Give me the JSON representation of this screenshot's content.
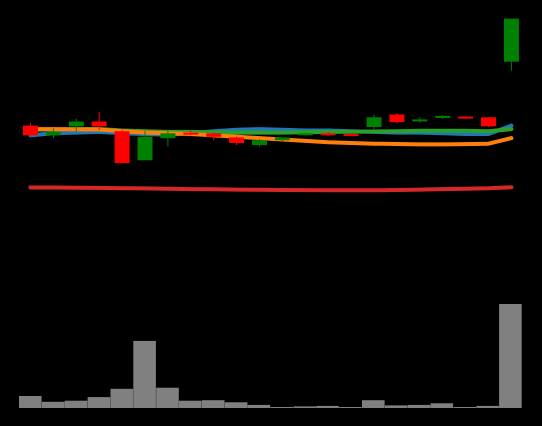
{
  "chart_data": {
    "type": "candlestick",
    "title": "",
    "xlabel": "",
    "ylabel": "",
    "background": "#000000",
    "up_color": "#008000",
    "down_color": "#ff0000",
    "volume_color": "#808080",
    "grid": false,
    "legend": "none",
    "price_range": [
      -37,
      140
    ],
    "volume_range": [
      0,
      100
    ],
    "candles": [
      {
        "open": 64.0,
        "high": 66.0,
        "low": 56.0,
        "close": 57.0
      },
      {
        "open": 57.0,
        "high": 62.0,
        "low": 55.0,
        "close": 59.5
      },
      {
        "open": 63.5,
        "high": 69.0,
        "low": 60.0,
        "close": 67.0
      },
      {
        "open": 67.0,
        "high": 74.0,
        "low": 61.0,
        "close": 63.5
      },
      {
        "open": 60.0,
        "high": 61.0,
        "low": 37.0,
        "close": 37.0
      },
      {
        "open": 39.0,
        "high": 60.0,
        "low": 39.0,
        "close": 56.0
      },
      {
        "open": 55.0,
        "high": 60.5,
        "low": 49.0,
        "close": 58.5
      },
      {
        "open": 59.0,
        "high": 60.5,
        "low": 57.0,
        "close": 58.0
      },
      {
        "open": 58.5,
        "high": 59.0,
        "low": 53.5,
        "close": 56.0
      },
      {
        "open": 55.5,
        "high": 56.0,
        "low": 50.0,
        "close": 51.5
      },
      {
        "open": 50.0,
        "high": 54.5,
        "low": 49.0,
        "close": 53.5
      },
      {
        "open": 53.5,
        "high": 55.0,
        "low": 52.0,
        "close": 55.5
      },
      {
        "open": 58.0,
        "high": 59.0,
        "low": 57.0,
        "close": 58.5
      },
      {
        "open": 58.5,
        "high": 59.5,
        "low": 56.5,
        "close": 57.5
      },
      {
        "open": 58.0,
        "high": 58.5,
        "low": 57.0,
        "close": 57.8
      },
      {
        "open": 63.0,
        "high": 72.0,
        "low": 61.5,
        "close": 70.0
      },
      {
        "open": 72.0,
        "high": 73.0,
        "low": 65.5,
        "close": 66.5
      },
      {
        "open": 67.5,
        "high": 70.0,
        "low": 66.0,
        "close": 68.5
      },
      {
        "open": 70.0,
        "high": 71.5,
        "low": 69.0,
        "close": 71.0
      },
      {
        "open": 70.5,
        "high": 71.0,
        "low": 69.0,
        "close": 69.5
      },
      {
        "open": 70.0,
        "high": 70.2,
        "low": 63.0,
        "close": 63.5
      },
      {
        "open": 110.0,
        "high": 141.0,
        "low": 103.5,
        "close": 141.0
      }
    ],
    "moving_averages": [
      {
        "color": "#1f77b4",
        "values": [
          57.0,
          58.5,
          59.0,
          59.5,
          58.5,
          58.0,
          57.5,
          58.5,
          60.0,
          61.0,
          61.5,
          61.0,
          60.5,
          60.5,
          60.0,
          59.5,
          59.0,
          59.0,
          58.5,
          58.0,
          58.0,
          64.0
        ]
      },
      {
        "color": "#2ca02c",
        "values": [
          61.0,
          61.3,
          61.5,
          61.6,
          60.5,
          60.0,
          59.5,
          59.5,
          59.3,
          59.0,
          59.0,
          59.0,
          59.2,
          59.5,
          59.6,
          59.8,
          60.0,
          60.3,
          60.3,
          60.3,
          60.0,
          61.5
        ]
      },
      {
        "color": "#ff7f0e",
        "values": [
          61.5,
          61.5,
          61.3,
          61.2,
          60.0,
          59.0,
          58.5,
          58.0,
          57.0,
          56.0,
          55.0,
          54.0,
          53.0,
          52.0,
          51.5,
          51.0,
          50.8,
          50.5,
          50.5,
          50.7,
          51.0,
          55.0
        ]
      },
      {
        "color": "#d62728",
        "values": [
          19.5,
          19.5,
          19.3,
          19.2,
          19.0,
          18.8,
          18.6,
          18.3,
          18.2,
          18.0,
          17.8,
          17.7,
          17.6,
          17.5,
          17.5,
          17.5,
          17.7,
          18.0,
          18.3,
          18.6,
          18.9,
          19.6
        ]
      }
    ],
    "volumes": [
      11.5,
      6.0,
      7.0,
      10.5,
      18.5,
      64.5,
      19.5,
      7.0,
      7.5,
      5.5,
      3.0,
      1.0,
      1.5,
      2.0,
      1.0,
      7.5,
      2.5,
      3.0,
      4.5,
      1.0,
      2.0,
      100.0
    ]
  }
}
